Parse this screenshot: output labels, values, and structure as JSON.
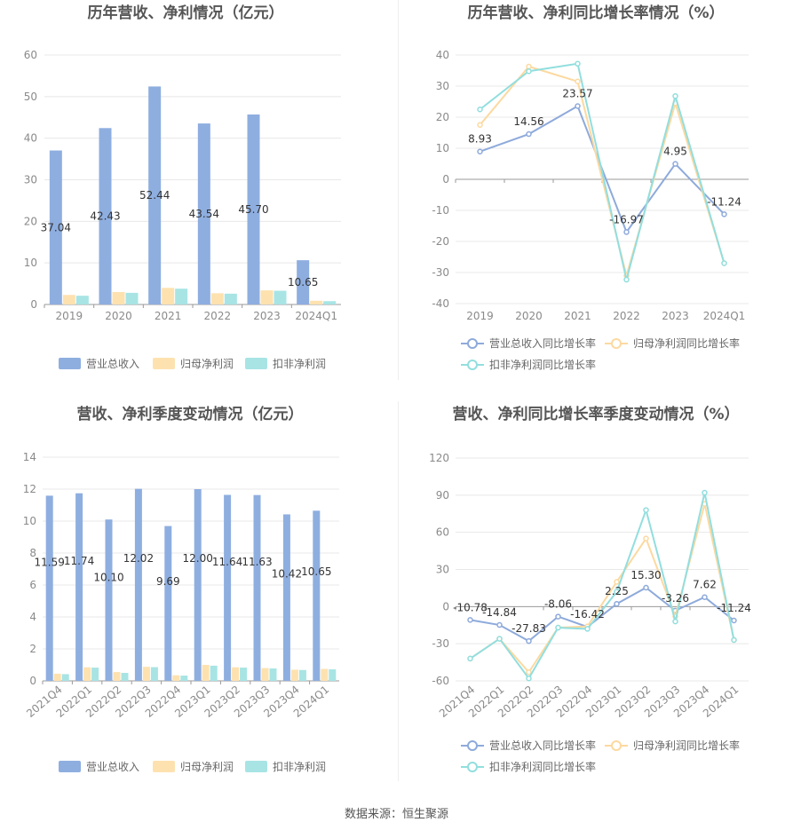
{
  "colors": {
    "revenue": "#8eaee0",
    "profit": "#fde2b0",
    "profit_ex": "#a8e4e4",
    "line_revenue": "#8eaadb",
    "line_profit": "#fcd9a0",
    "line_profit_ex": "#92dede"
  },
  "source": "数据来源：恒生聚源",
  "chart_data": [
    {
      "type": "bar",
      "title": "历年营收、净利情况（亿元）",
      "categories": [
        "2019",
        "2020",
        "2021",
        "2022",
        "2023",
        "2024Q1"
      ],
      "ylim": [
        0,
        60
      ],
      "yticks": [
        0,
        10,
        20,
        30,
        40,
        50,
        60
      ],
      "series": [
        {
          "name": "营业总收入",
          "values": [
            37.04,
            42.43,
            52.44,
            43.54,
            45.7,
            10.65
          ],
          "labels": [
            "37.04",
            "42.43",
            "52.44",
            "43.54",
            "45.70",
            "10.65"
          ]
        },
        {
          "name": "归母净利润",
          "values": [
            2.3,
            3.0,
            4.0,
            2.7,
            3.4,
            0.9
          ]
        },
        {
          "name": "扣非净利润",
          "values": [
            2.1,
            2.8,
            3.8,
            2.6,
            3.3,
            0.8
          ]
        }
      ],
      "legend": "bottom"
    },
    {
      "type": "line",
      "title": "历年营收、净利同比增长率情况（%）",
      "categories": [
        "2019",
        "2020",
        "2021",
        "2022",
        "2023",
        "2024Q1"
      ],
      "ylim": [
        -40,
        40
      ],
      "yticks": [
        -40,
        -30,
        -20,
        -10,
        0,
        10,
        20,
        30,
        40
      ],
      "series": [
        {
          "name": "营业总收入同比增长率",
          "values": [
            8.93,
            14.56,
            23.57,
            -16.97,
            4.95,
            -11.24
          ],
          "labels": [
            "8.93",
            "14.56",
            "23.57",
            "-16.97",
            "4.95",
            "-11.24"
          ]
        },
        {
          "name": "归母净利润同比增长率",
          "values": [
            17.5,
            36.3,
            31.5,
            -31.0,
            24.5,
            -27.0
          ]
        },
        {
          "name": "扣非净利润同比增长率",
          "values": [
            22.5,
            34.8,
            37.2,
            -32.3,
            26.8,
            -27.0
          ]
        }
      ],
      "legend": "bottom"
    },
    {
      "type": "bar",
      "title": "营收、净利季度变动情况（亿元）",
      "categories": [
        "2021Q4",
        "2022Q1",
        "2022Q2",
        "2022Q3",
        "2022Q4",
        "2023Q1",
        "2023Q2",
        "2023Q3",
        "2023Q4",
        "2024Q1"
      ],
      "ylim": [
        0,
        14
      ],
      "yticks": [
        0,
        2,
        4,
        6,
        8,
        10,
        12,
        14
      ],
      "series": [
        {
          "name": "营业总收入",
          "values": [
            11.59,
            11.74,
            10.1,
            12.02,
            9.69,
            12.0,
            11.64,
            11.63,
            10.42,
            10.65
          ],
          "labels": [
            "11.59",
            "11.74",
            "10.10",
            "12.02",
            "9.69",
            "12.00",
            "11.64",
            "11.63",
            "10.42",
            "10.65"
          ]
        },
        {
          "name": "归母净利润",
          "values": [
            0.45,
            0.85,
            0.55,
            0.88,
            0.35,
            1.0,
            0.85,
            0.8,
            0.7,
            0.75
          ]
        },
        {
          "name": "扣非净利润",
          "values": [
            0.42,
            0.83,
            0.5,
            0.86,
            0.33,
            0.95,
            0.83,
            0.78,
            0.68,
            0.72
          ]
        }
      ],
      "legend": "bottom"
    },
    {
      "type": "line",
      "title": "营收、净利同比增长率季度变动情况（%）",
      "categories": [
        "2021Q4",
        "2022Q1",
        "2022Q2",
        "2022Q3",
        "2022Q4",
        "2023Q1",
        "2023Q2",
        "2023Q3",
        "2023Q4",
        "2024Q1"
      ],
      "ylim": [
        -60,
        120
      ],
      "yticks": [
        -60,
        -30,
        0,
        30,
        60,
        90,
        120
      ],
      "series": [
        {
          "name": "营业总收入同比增长率",
          "values": [
            -10.78,
            -14.84,
            -27.83,
            -8.06,
            -16.42,
            2.25,
            15.3,
            -3.26,
            7.62,
            -11.24
          ],
          "labels": [
            "-10.78",
            "-14.84",
            "-27.83",
            "-8.06",
            "-16.42",
            "2.25",
            "15.30",
            "-3.26",
            "7.62",
            "-11.24"
          ]
        },
        {
          "name": "归母净利润同比增长率",
          "values": [
            -42,
            -26,
            -53,
            -17,
            -16,
            20,
            55,
            -8,
            83,
            -27
          ]
        },
        {
          "name": "扣非净利润同比增长率",
          "values": [
            -42,
            -26,
            -58,
            -17,
            -18,
            12,
            78,
            -12,
            92,
            -27
          ]
        }
      ],
      "legend": "bottom"
    }
  ]
}
